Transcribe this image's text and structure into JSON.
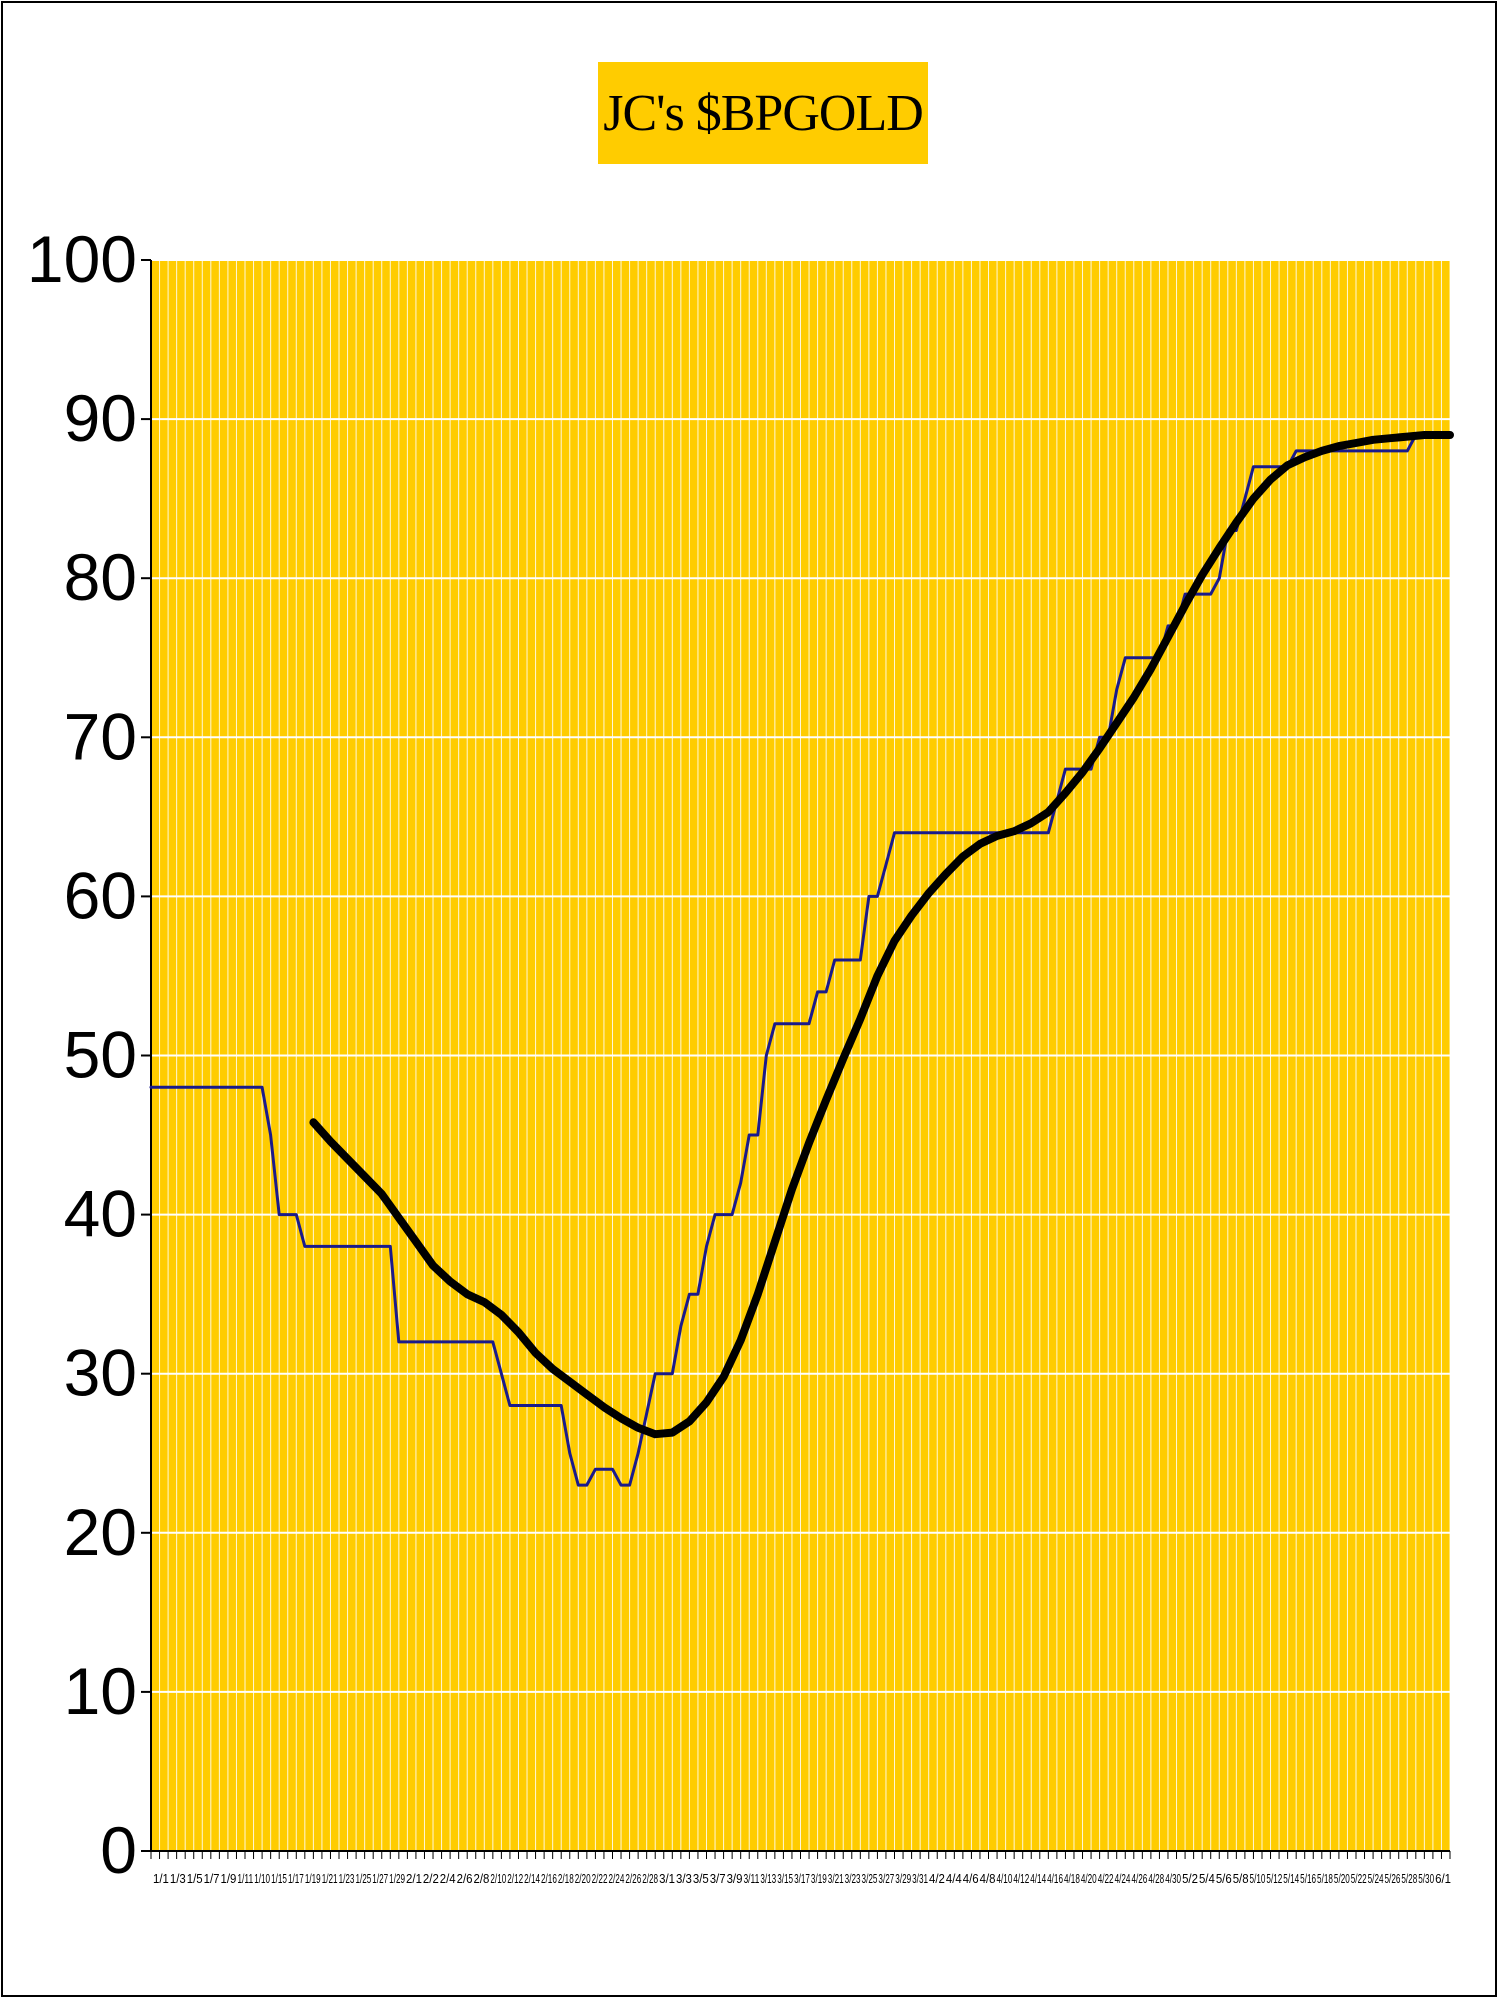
{
  "colors": {
    "plot_background": "#ffcc00",
    "grid": "#ffffff",
    "series_line": "#1a1a8c",
    "average_line": "#000000",
    "title_background": "#ffcc00"
  },
  "chart_data": {
    "type": "line",
    "title": "JC's $BPGOLD",
    "xlabel": "",
    "ylabel": "",
    "ylim": [
      0,
      100
    ],
    "yticks": [
      0,
      10,
      20,
      30,
      40,
      50,
      60,
      70,
      80,
      90,
      100
    ],
    "grid": true,
    "x_range": [
      0,
      152
    ],
    "x_tick_labels": [
      "1/1",
      "1/3",
      "1/5",
      "1/7",
      "1/9",
      "1/11",
      "1/10",
      "1/15",
      "1/17",
      "1/19",
      "1/21",
      "1/23",
      "1/25",
      "1/27",
      "1/29",
      "2/1",
      "2/2",
      "2/4",
      "2/6",
      "2/8",
      "2/10",
      "2/12",
      "2/14",
      "2/16",
      "2/18",
      "2/20",
      "2/22",
      "2/24",
      "2/26",
      "2/28",
      "3/1",
      "3/3",
      "3/5",
      "3/7",
      "3/9",
      "3/11",
      "3/13",
      "3/15",
      "3/17",
      "3/19",
      "3/21",
      "3/23",
      "3/25",
      "3/27",
      "3/29",
      "3/31",
      "4/2",
      "4/4",
      "4/6",
      "4/8",
      "4/10",
      "4/12",
      "4/14",
      "4/16",
      "4/18",
      "4/20",
      "4/22",
      "4/24",
      "4/26",
      "4/28",
      "4/30",
      "5/2",
      "5/4",
      "5/6",
      "5/8",
      "5/10",
      "5/12",
      "5/14",
      "5/16",
      "5/18",
      "5/20",
      "5/22",
      "5/24",
      "5/26",
      "5/28",
      "5/30",
      "6/1"
    ],
    "series": [
      {
        "points": [
          [
            0,
            48
          ],
          [
            13,
            48
          ],
          [
            14,
            45
          ],
          [
            15,
            40
          ],
          [
            17,
            40
          ],
          [
            18,
            38
          ],
          [
            28,
            38
          ],
          [
            29,
            32
          ],
          [
            40,
            32
          ],
          [
            41,
            30
          ],
          [
            42,
            28
          ],
          [
            48,
            28
          ],
          [
            49,
            25
          ],
          [
            50,
            23
          ],
          [
            51,
            23
          ],
          [
            52,
            24
          ],
          [
            54,
            24
          ],
          [
            55,
            23
          ],
          [
            56,
            23
          ],
          [
            57,
            25
          ],
          [
            59,
            30
          ],
          [
            61,
            30
          ],
          [
            62,
            33
          ],
          [
            63,
            35
          ],
          [
            64,
            35
          ],
          [
            65,
            38
          ],
          [
            66,
            40
          ],
          [
            68,
            40
          ],
          [
            69,
            42
          ],
          [
            70,
            45
          ],
          [
            71,
            45
          ],
          [
            72,
            50
          ],
          [
            73,
            52
          ],
          [
            77,
            52
          ],
          [
            78,
            54
          ],
          [
            79,
            54
          ],
          [
            80,
            56
          ],
          [
            83,
            56
          ],
          [
            84,
            60
          ],
          [
            85,
            60
          ],
          [
            86,
            62
          ],
          [
            87,
            64
          ],
          [
            105,
            64
          ],
          [
            106,
            66
          ],
          [
            107,
            68
          ],
          [
            110,
            68
          ],
          [
            111,
            70
          ],
          [
            112,
            70
          ],
          [
            113,
            73
          ],
          [
            114,
            75
          ],
          [
            118,
            75
          ],
          [
            119,
            77
          ],
          [
            120,
            77
          ],
          [
            121,
            79
          ],
          [
            124,
            79
          ],
          [
            125,
            80
          ],
          [
            126,
            83
          ],
          [
            127,
            83
          ],
          [
            128,
            85
          ],
          [
            129,
            87
          ],
          [
            133,
            87
          ],
          [
            134,
            88
          ],
          [
            147,
            88
          ],
          [
            148,
            89
          ],
          [
            152,
            89
          ]
        ]
      },
      {
        "points": [
          [
            19,
            45.8
          ],
          [
            21,
            44.6
          ],
          [
            23,
            43.5
          ],
          [
            25,
            42.4
          ],
          [
            27,
            41.3
          ],
          [
            29,
            39.8
          ],
          [
            31,
            38.3
          ],
          [
            33,
            36.8
          ],
          [
            35,
            35.8
          ],
          [
            37,
            35
          ],
          [
            39,
            34.5
          ],
          [
            41,
            33.7
          ],
          [
            43,
            32.6
          ],
          [
            45,
            31.3
          ],
          [
            47,
            30.3
          ],
          [
            49,
            29.5
          ],
          [
            51,
            28.7
          ],
          [
            53,
            27.9
          ],
          [
            55,
            27.2
          ],
          [
            57,
            26.6
          ],
          [
            59,
            26.2
          ],
          [
            61,
            26.3
          ],
          [
            63,
            27
          ],
          [
            65,
            28.2
          ],
          [
            67,
            29.8
          ],
          [
            69,
            32.1
          ],
          [
            71,
            35
          ],
          [
            73,
            38.3
          ],
          [
            75,
            41.6
          ],
          [
            77,
            44.5
          ],
          [
            79,
            47.2
          ],
          [
            81,
            49.8
          ],
          [
            83,
            52.3
          ],
          [
            85,
            55
          ],
          [
            87,
            57.2
          ],
          [
            89,
            58.8
          ],
          [
            91,
            60.2
          ],
          [
            93,
            61.4
          ],
          [
            95,
            62.5
          ],
          [
            97,
            63.3
          ],
          [
            99,
            63.8
          ],
          [
            101,
            64.1
          ],
          [
            103,
            64.6
          ],
          [
            105,
            65.3
          ],
          [
            107,
            66.5
          ],
          [
            109,
            67.8
          ],
          [
            111,
            69.3
          ],
          [
            113,
            70.9
          ],
          [
            115,
            72.5
          ],
          [
            117,
            74.3
          ],
          [
            119,
            76.3
          ],
          [
            121,
            78.3
          ],
          [
            123,
            80.2
          ],
          [
            125,
            81.9
          ],
          [
            127,
            83.5
          ],
          [
            129,
            85
          ],
          [
            131,
            86.2
          ],
          [
            133,
            87.1
          ],
          [
            135,
            87.6
          ],
          [
            137,
            88
          ],
          [
            139,
            88.3
          ],
          [
            141,
            88.5
          ],
          [
            143,
            88.7
          ],
          [
            145,
            88.8
          ],
          [
            147,
            88.9
          ],
          [
            149,
            89
          ],
          [
            152,
            89
          ]
        ]
      }
    ]
  }
}
